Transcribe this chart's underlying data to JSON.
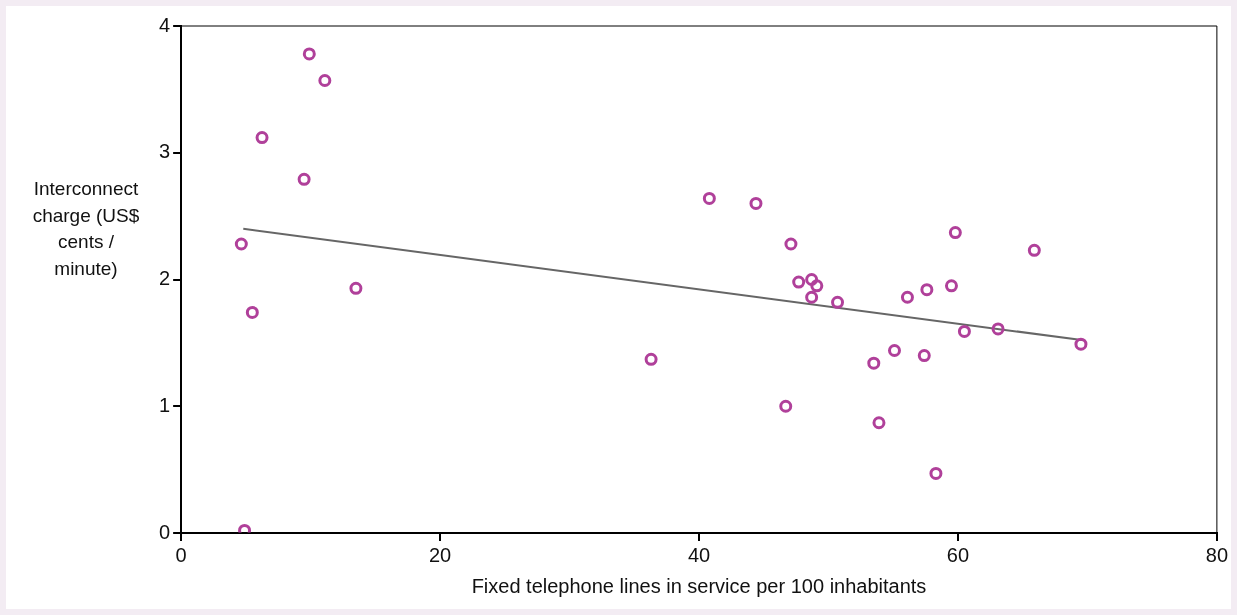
{
  "chart_data": {
    "type": "scatter",
    "xlabel": "Fixed telephone lines in service per 100 inhabitants",
    "ylabel": "Interconnect charge (US$ cents / minute)",
    "xlim": [
      0,
      80
    ],
    "xticks": [
      0,
      20,
      40,
      60,
      80
    ],
    "ylim": [
      0,
      4
    ],
    "yticks": [
      0,
      1,
      2,
      3,
      4
    ],
    "grid": false,
    "legend": false,
    "series": [
      {
        "color": "#b0409a",
        "marker": "circle",
        "x": [
          4.9,
          4.65,
          5.5,
          6.25,
          9.5,
          9.9,
          11.1,
          13.5,
          36.3,
          40.8,
          44.4,
          47.1,
          46.7,
          47.7,
          48.7,
          49.1,
          48.7,
          50.7,
          53.5,
          53.9,
          55.1,
          56.1,
          57.4,
          57.6,
          58.3,
          59.5,
          59.8,
          60.5,
          63.1,
          65.9,
          69.5
        ],
        "values": [
          0.02,
          2.28,
          1.74,
          3.12,
          2.79,
          3.78,
          3.57,
          1.93,
          1.37,
          2.64,
          2.6,
          2.28,
          1.0,
          1.98,
          2.0,
          1.95,
          1.86,
          1.82,
          1.34,
          0.87,
          1.44,
          1.86,
          1.4,
          1.92,
          0.47,
          1.95,
          2.37,
          1.59,
          1.61,
          2.23,
          1.49
        ]
      },
      {
        "type": "line",
        "color": "#666666",
        "line_style": "solid",
        "x": [
          4.8,
          69.7
        ],
        "values": [
          2.4,
          1.52
        ]
      }
    ]
  }
}
